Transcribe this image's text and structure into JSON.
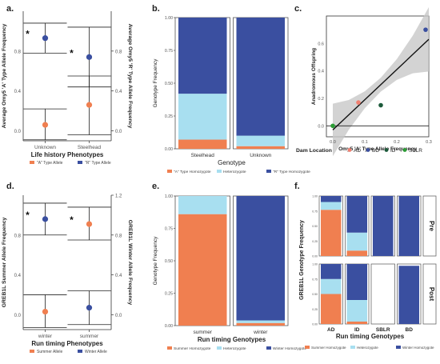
{
  "colors": {
    "orange": "#f07f50",
    "light_blue": "#a8dff0",
    "dark_blue": "#3a4fa0",
    "green": "#2b9d35",
    "dark_green": "#1c5a3a",
    "pink": "#f07f70"
  },
  "chart_data": [
    {
      "panel": "a.",
      "type": "scatter",
      "categories": [
        "Unknown",
        "Steelhead"
      ],
      "xlabel": "Life  history Phenotypes",
      "ylabel_left": "Average Omy5 'A' Type Allele Frequency",
      "ylabel_right": "Average Omy5 'R' Type Allele Frequency",
      "ylim": [
        -0.1,
        1.2
      ],
      "yticks_left": [
        "0.8",
        "0.4",
        "0.0"
      ],
      "yticks_right": [
        "0.8",
        "0.4",
        "0.0"
      ],
      "series": [
        {
          "name": "\"A\" Type Allele",
          "color": "#f07f50",
          "values": [
            0.06,
            0.26
          ],
          "err_low": [
            -0.09,
            -0.04
          ],
          "err_high": [
            0.22,
            0.55
          ]
        },
        {
          "name": "\"R\" Type Allele",
          "color": "#3a4fa0",
          "values": [
            0.93,
            0.74
          ],
          "err_low": [
            0.78,
            0.44
          ],
          "err_high": [
            1.08,
            1.04
          ]
        }
      ],
      "annotations": [
        "*",
        "*"
      ]
    },
    {
      "panel": "b.",
      "type": "bar",
      "stacked": true,
      "categories": [
        "Steelhead",
        "Unknown"
      ],
      "xlabel": "Genotype",
      "ylabel": "Genotype Frequency",
      "yticks": [
        "0.00",
        "0.25",
        "0.50",
        "0.75",
        "1.00"
      ],
      "series": [
        {
          "name": "\"A\" Type Homozygote",
          "color": "#f07f50",
          "values": [
            0.07,
            0.02
          ]
        },
        {
          "name": "Heterozygote",
          "color": "#a8dff0",
          "values": [
            0.35,
            0.08
          ]
        },
        {
          "name": "\"R\" Type Homozygote",
          "color": "#3a4fa0",
          "values": [
            0.58,
            0.9
          ]
        }
      ]
    },
    {
      "panel": "c.",
      "type": "scatter",
      "xlabel": "Omy5 'A' Type Allele Frequency",
      "ylabel": "Anadromous Offspring",
      "xlim": [
        -0.02,
        0.3
      ],
      "ylim": [
        -0.08,
        0.8
      ],
      "xticks": [
        "0.0",
        "0.1",
        "0.2",
        "0.3"
      ],
      "yticks": [
        "0.0",
        "0.2",
        "0.4",
        "0.6"
      ],
      "legend_title": "Dam Location",
      "trend": {
        "x": [
          0,
          0.3
        ],
        "y": [
          -0.03,
          0.63
        ]
      },
      "series": [
        {
          "name": "AD",
          "color": "#f07f70",
          "x": [
            0.08
          ],
          "y": [
            0.17
          ]
        },
        {
          "name": "BD",
          "color": "#3a4fa0",
          "x": [
            0.29
          ],
          "y": [
            0.7
          ]
        },
        {
          "name": "ID",
          "color": "#1c5a3a",
          "x": [
            0.15
          ],
          "y": [
            0.15
          ]
        },
        {
          "name": "SBLR",
          "color": "#2b9d35",
          "x": [
            0.0
          ],
          "y": [
            0.0
          ]
        }
      ]
    },
    {
      "panel": "d.",
      "type": "scatter",
      "categories": [
        "winter",
        "summer"
      ],
      "xlabel": "Run  timing Phenotypes",
      "ylabel_left": "GREB1L Summer Allele Frequency",
      "ylabel_right": "GREB1L Winter Allele Frequency",
      "ylim": [
        -0.15,
        1.2
      ],
      "yticks_left": [
        "0.8",
        "0.4",
        "0.0"
      ],
      "yticks_right": [
        "1.2",
        "0.8",
        "0.4",
        "0.0"
      ],
      "series": [
        {
          "name": "Summer  Allele",
          "color": "#f07f50",
          "values": [
            0.03,
            0.91
          ],
          "err_low": [
            -0.13,
            0.75
          ],
          "err_high": [
            0.2,
            1.08
          ]
        },
        {
          "name": "Winter Allele",
          "color": "#3a4fa0",
          "values": [
            0.96,
            0.07
          ],
          "err_low": [
            0.8,
            -0.1
          ],
          "err_high": [
            1.12,
            0.24
          ]
        }
      ],
      "annotations": [
        "*",
        "*"
      ]
    },
    {
      "panel": "e.",
      "type": "bar",
      "stacked": true,
      "categories": [
        "summer",
        "winter"
      ],
      "xlabel": "Run timing Genotypes",
      "ylabel": "Genotype Frequency",
      "yticks": [
        "0.00",
        "0.25",
        "0.50",
        "0.75",
        "1.00"
      ],
      "series": [
        {
          "name": "Summer Homozygote",
          "color": "#f07f50",
          "values": [
            0.86,
            0.02
          ]
        },
        {
          "name": "Heterozygote",
          "color": "#a8dff0",
          "values": [
            0.14,
            0.02
          ]
        },
        {
          "name": "Winter Homozygote",
          "color": "#3a4fa0",
          "values": [
            0.0,
            0.96
          ]
        }
      ]
    },
    {
      "panel": "f.",
      "type": "bar",
      "stacked": true,
      "categories": [
        "AD",
        "ID",
        "SBLR",
        "BD"
      ],
      "facets": [
        "Pre",
        "Post"
      ],
      "xlabel": "Run timing Genotypes",
      "ylabel": "GREB1L Genotype Frequency",
      "yticks": [
        "1.00",
        "0.75",
        "0.50",
        "0.25",
        "0.00"
      ],
      "series": [
        {
          "name": "Summer Homozygote",
          "color": "#f07f50",
          "pre": [
            0.77,
            0.09,
            0,
            0
          ],
          "post": [
            0.5,
            0.04,
            0,
            0
          ]
        },
        {
          "name": "Heterozygote",
          "color": "#a8dff0",
          "pre": [
            0.13,
            0.3,
            0,
            0
          ],
          "post": [
            0.25,
            0.36,
            0,
            0
          ]
        },
        {
          "name": "Winter Homozygote",
          "color": "#3a4fa0",
          "pre": [
            0.1,
            0.61,
            1,
            1
          ],
          "post": [
            0.25,
            0.6,
            0,
            0.97
          ]
        }
      ]
    }
  ]
}
